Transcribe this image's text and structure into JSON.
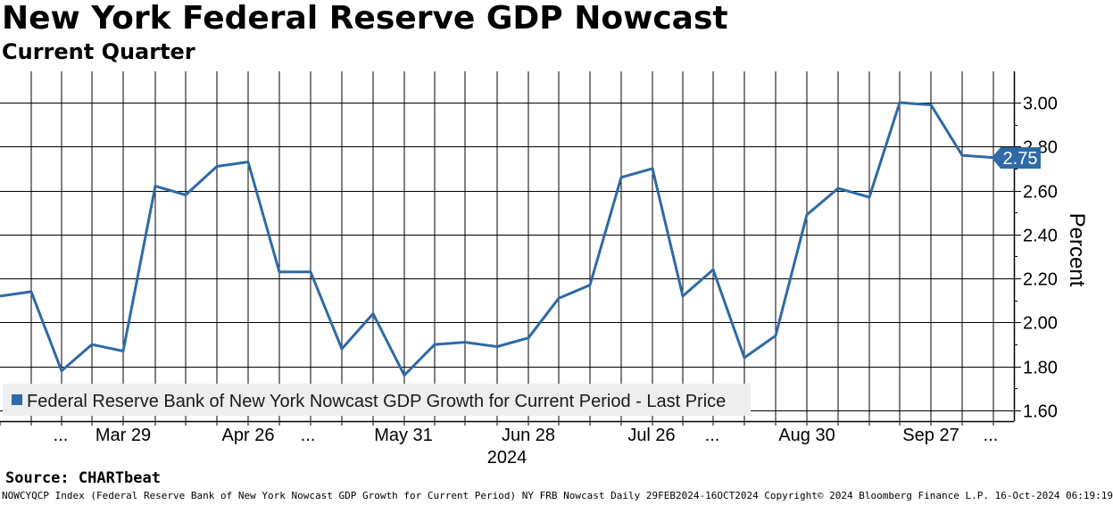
{
  "header": {
    "title": "New York Federal Reserve GDP Nowcast",
    "subtitle": "Current Quarter"
  },
  "footer": {
    "source": "Source: CHARTbeat",
    "note": "NOWCYQCP Index (Federal Reserve Bank of New York Nowcast GDP Growth for Current Period) NY FRB Nowcast  Daily 29FEB2024-16OCT2024 Copyright© 2024 Bloomberg Finance L.P. 16-Oct-2024 06:19:19"
  },
  "colors": {
    "series": "#2e6aa6",
    "grid": "#000000",
    "legend_bg": "#eeeeee"
  },
  "chart_data": {
    "type": "line",
    "title": "New York Federal Reserve GDP Nowcast",
    "subtitle": "Current Quarter",
    "ylabel": "Percent",
    "xlabel": "2024",
    "ylim": [
      1.58,
      3.13
    ],
    "y_ticks": [
      "1.60",
      "1.80",
      "2.00",
      "2.20",
      "2.40",
      "2.60",
      "2.80",
      "3.00"
    ],
    "x_tick_labels": [
      "...",
      "Mar 29",
      "Apr 26",
      "...",
      "May 31",
      "Jun 28",
      "Jul 26",
      "...",
      "Aug 30",
      "Sep 27",
      "..."
    ],
    "year_label": "2024",
    "grid": true,
    "legend": "bottom-left",
    "last_value_label": "2.75",
    "series": [
      {
        "name": "Federal Reserve Bank of New York Nowcast GDP Growth for Current Period - Last Price",
        "values": [
          2.12,
          2.14,
          1.78,
          1.9,
          1.87,
          2.62,
          2.58,
          2.71,
          2.73,
          2.23,
          2.23,
          1.88,
          2.04,
          1.76,
          1.9,
          1.91,
          1.89,
          1.93,
          2.11,
          2.17,
          2.66,
          2.7,
          2.12,
          2.24,
          1.84,
          1.94,
          2.49,
          2.61,
          2.57,
          3.0,
          2.99,
          2.76,
          2.75
        ]
      }
    ]
  }
}
